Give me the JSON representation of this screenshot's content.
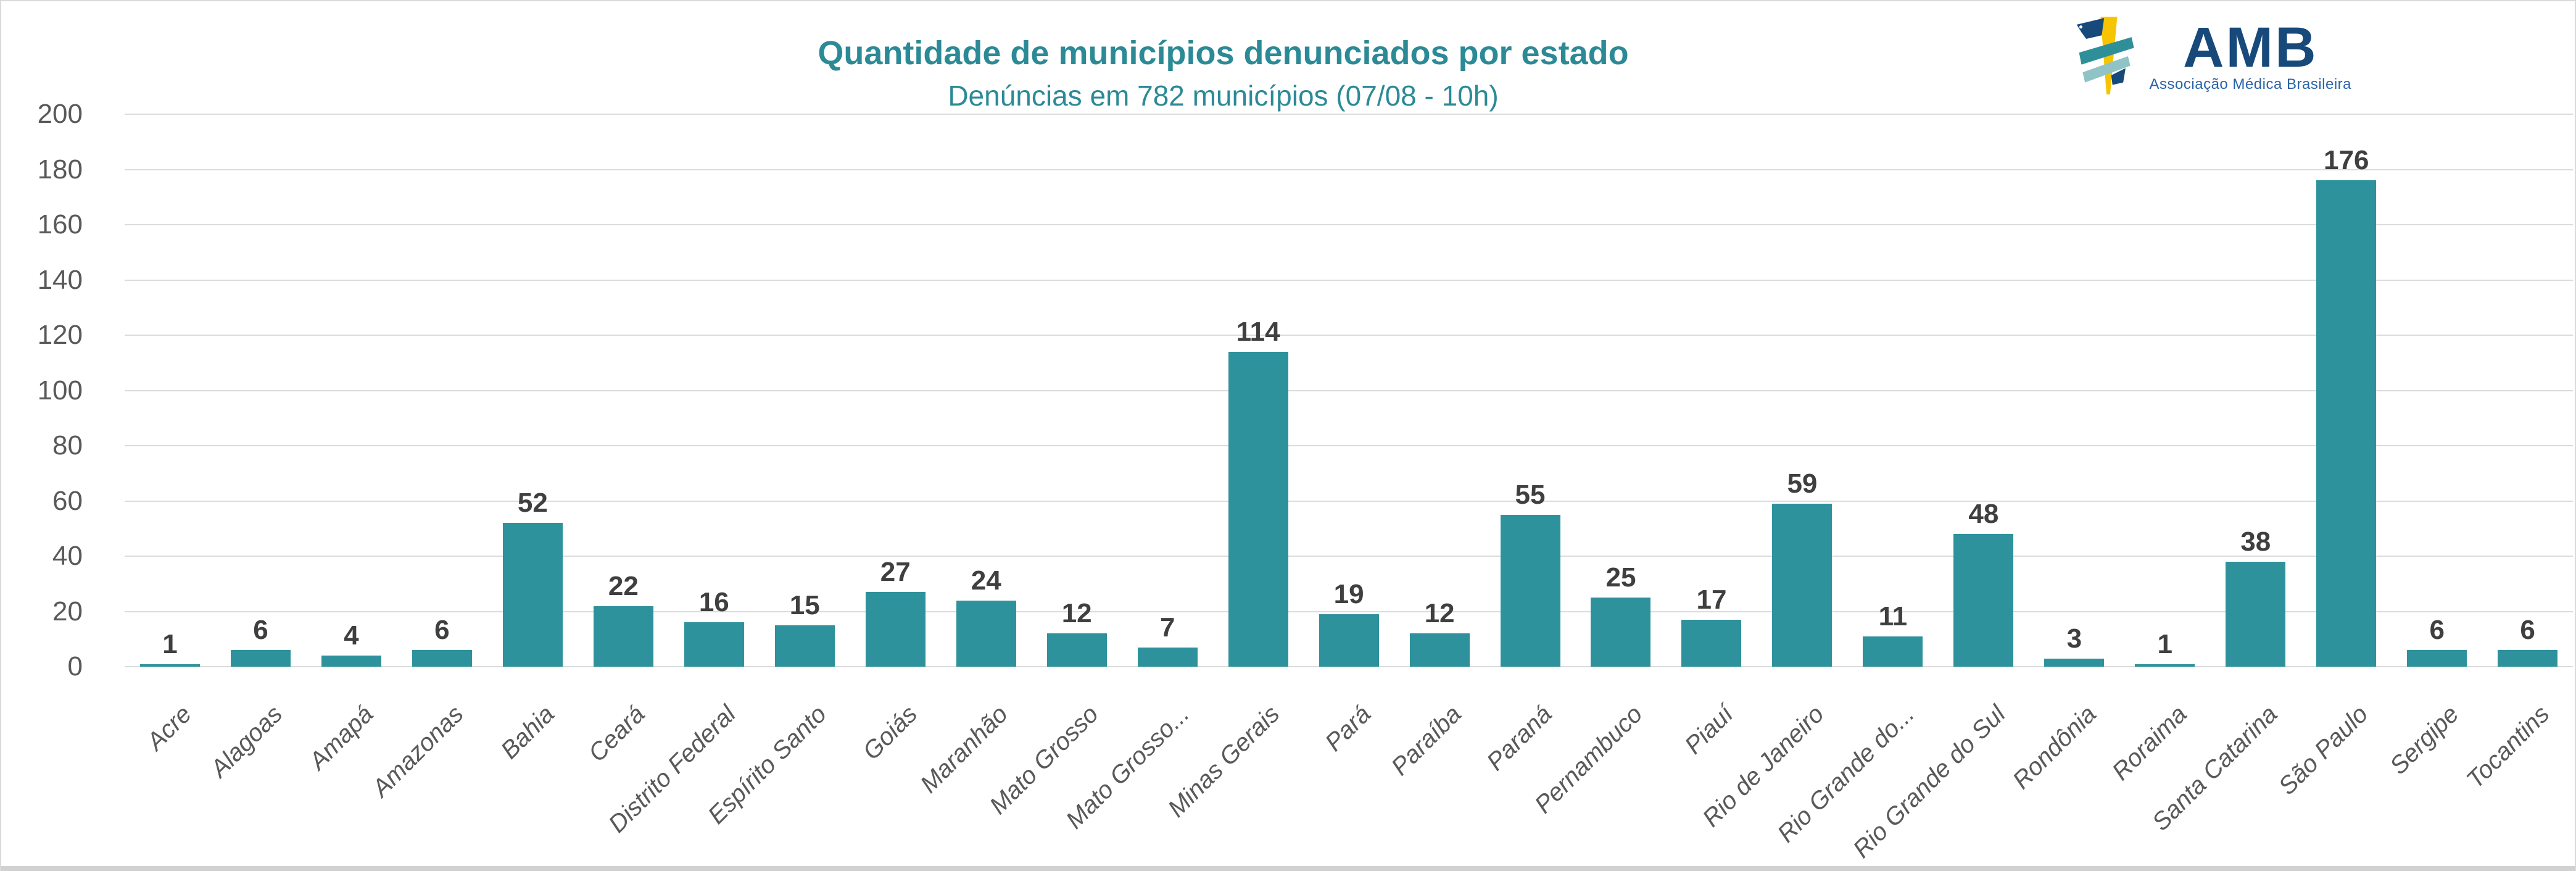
{
  "header": {
    "title": "Quantidade de municípios denunciados por estado",
    "subtitle": "Denúncias em 782 municípios (07/08 - 10h)"
  },
  "logo": {
    "text": "AMB",
    "subtext": "Associação Médica Brasileira"
  },
  "colors": {
    "bar": "#2E929C",
    "title": "#2B8A96",
    "value-label": "#3F3F3F",
    "axis-label": "#595959",
    "gridline": "#DCDCDC",
    "logo-navy": "#17497B",
    "logo-blue": "#2862A8",
    "logo-yellow": "#F6C500",
    "logo-teal-dark": "#2F8F98",
    "logo-teal-light": "#8FC3C6"
  },
  "chart_data": {
    "type": "bar",
    "title": "Quantidade de municípios denunciados por estado",
    "subtitle": "Denúncias em 782 municípios (07/08 - 10h)",
    "categories": [
      "Acre",
      "Alagoas",
      "Amapá",
      "Amazonas",
      "Bahia",
      "Ceará",
      "Distrito Federal",
      "Espírito Santo",
      "Goiás",
      "Maranhão",
      "Mato Grosso",
      "Mato Grosso...",
      "Minas Gerais",
      "Pará",
      "Paraíba",
      "Paraná",
      "Pernambuco",
      "Piauí",
      "Rio de Janeiro",
      "Rio Grande do...",
      "Rio Grande do Sul",
      "Rondônia",
      "Roraima",
      "Santa Catarina",
      "São Paulo",
      "Sergipe",
      "Tocantins"
    ],
    "values": [
      1,
      6,
      4,
      6,
      52,
      22,
      16,
      15,
      27,
      24,
      12,
      7,
      114,
      19,
      12,
      55,
      25,
      17,
      59,
      11,
      48,
      3,
      1,
      38,
      176,
      6,
      6
    ],
    "xlabel": "",
    "ylabel": "",
    "ylim": [
      0,
      200
    ],
    "yticks": [
      0,
      20,
      40,
      60,
      80,
      100,
      120,
      140,
      160,
      180,
      200
    ],
    "grid": true,
    "value_labels": true,
    "x_tick_rotation": 45,
    "legend": "none",
    "bar_color": "#2E929C",
    "total": 782
  }
}
